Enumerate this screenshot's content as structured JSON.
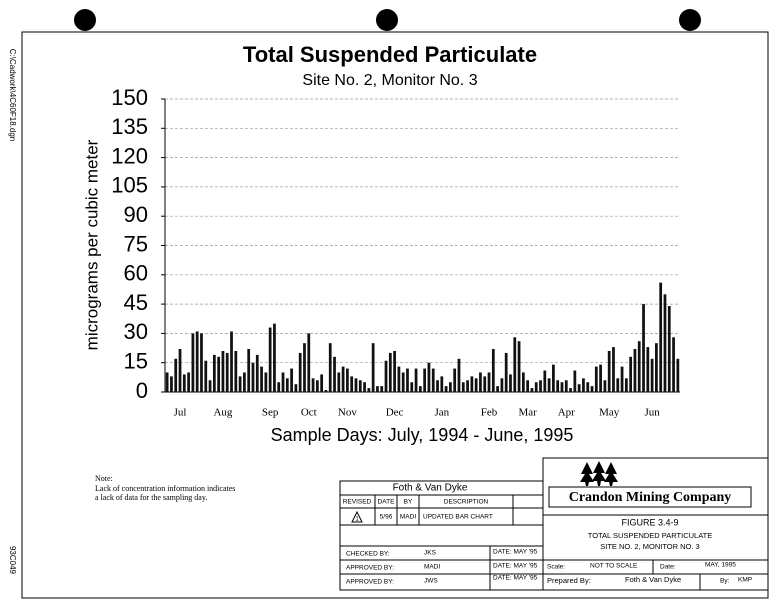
{
  "file_path": "C:\\Cadwork\\4C60F18.dgn",
  "doc_number": "93C049",
  "chart_data": {
    "type": "bar",
    "title": "Total Suspended Particulate",
    "subtitle": "Site No. 2, Monitor No. 3",
    "y_label": "micrograms per cubic meter",
    "x_label": "Sample Days: July, 1994 - June, 1995",
    "categories": [
      null,
      null,
      null,
      "Jul",
      null,
      null,
      null,
      null,
      null,
      null,
      null,
      null,
      null,
      "Aug",
      null,
      null,
      null,
      null,
      null,
      null,
      null,
      null,
      null,
      null,
      "Sep",
      null,
      null,
      null,
      null,
      null,
      null,
      null,
      null,
      "Oct",
      null,
      null,
      null,
      null,
      null,
      null,
      null,
      null,
      "Nov",
      null,
      null,
      null,
      null,
      null,
      null,
      null,
      null,
      null,
      null,
      "Dec",
      null,
      null,
      null,
      null,
      null,
      null,
      null,
      null,
      null,
      null,
      "Jan",
      null,
      null,
      null,
      null,
      null,
      null,
      null,
      null,
      null,
      null,
      "Feb",
      null,
      null,
      null,
      null,
      null,
      null,
      null,
      null,
      "Mar",
      null,
      null,
      null,
      null,
      null,
      null,
      null,
      null,
      "Apr",
      null,
      null,
      null,
      null,
      null,
      null,
      null,
      null,
      null,
      "May",
      null,
      null,
      null,
      null,
      null,
      null,
      null,
      null,
      null,
      "Jun",
      null,
      null,
      null,
      null,
      null,
      null
    ],
    "values": [
      10,
      8,
      17,
      22,
      9,
      10,
      30,
      31,
      30,
      16,
      6,
      19,
      18,
      21,
      20,
      31,
      21,
      8,
      10,
      22,
      15,
      19,
      13,
      10,
      33,
      35,
      5,
      10,
      7,
      12,
      4,
      20,
      25,
      30,
      7,
      6,
      9,
      1,
      25,
      18,
      10,
      13,
      12,
      8,
      7,
      6,
      5,
      2,
      25,
      3,
      3,
      16,
      20,
      21,
      13,
      10,
      12,
      5,
      12,
      3,
      12,
      15,
      12,
      6,
      8,
      3,
      5,
      12,
      17,
      5,
      6,
      8,
      7,
      10,
      8,
      10,
      22,
      3,
      7,
      20,
      9,
      28,
      26,
      10,
      6,
      2,
      5,
      6,
      11,
      7,
      14,
      6,
      5,
      6,
      2,
      11,
      4,
      7,
      5,
      3,
      13,
      14,
      6,
      21,
      23,
      7,
      13,
      7,
      18,
      22,
      26,
      45,
      23,
      17,
      25,
      56,
      50,
      44,
      28,
      17
    ],
    "color": "#111111",
    "ylim": [
      0,
      150
    ],
    "yticks": [
      0,
      15,
      30,
      45,
      60,
      75,
      90,
      105,
      120,
      135,
      150
    ],
    "grid": true
  },
  "note": {
    "heading": "Note:",
    "lines": [
      "Lack of concentration information indicates",
      "a lack of data for the sampling day."
    ]
  },
  "title_block": {
    "firm": "Foth & Van Dyke",
    "revision_headers": [
      "REVISED",
      "DATE",
      "BY",
      "DESCRIPTION"
    ],
    "revision": {
      "number": "1",
      "date": "5/96",
      "by": "MADI",
      "description": "UPDATED BAR CHART"
    },
    "signoffs": [
      {
        "label": "CHECKED BY:",
        "name": "JKS",
        "date": "DATE: MAY '95"
      },
      {
        "label": "APPROVED BY:",
        "name": "MADI",
        "date": "DATE: MAY '95"
      },
      {
        "label": "APPROVED BY:",
        "name": "JWS",
        "date": "DATE: MAY '95"
      }
    ],
    "company": "Crandon Mining Company",
    "figure": "FIGURE 3.4-9",
    "figure_title": [
      "TOTAL SUSPENDED PARTICULATE",
      "SITE NO. 2, MONITOR NO. 3"
    ],
    "scale_label": "Scale:",
    "scale": "NOT TO SCALE",
    "date_label": "Date:",
    "date": "MAY, 1995",
    "prepared_label": "Prepared By:",
    "prepared_by": "Foth & Van Dyke",
    "by_label": "By:",
    "by": "KMP"
  }
}
